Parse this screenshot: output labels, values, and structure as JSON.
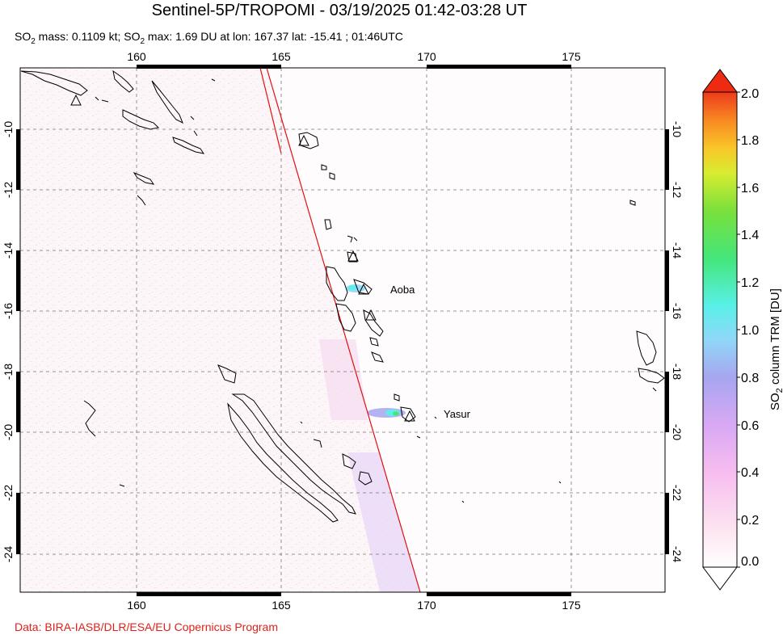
{
  "title": "Sentinel-5P/TROPOMI - 03/19/2025 01:42-03:28 UT",
  "subtitle": {
    "p1": "SO",
    "p1_sub": "2",
    "p2": " mass: 0.1109 kt; SO",
    "p2_sub": "2",
    "p3": " max: 1.69 DU at lon: 167.37 lat: -15.41 ; 01:46UTC"
  },
  "map": {
    "lon_range": [
      156,
      178
    ],
    "lat_range": [
      -25,
      -7.9
    ],
    "x_ticks": [
      "160",
      "165",
      "170",
      "175"
    ],
    "y_ticks": [
      "-10",
      "-12",
      "-14",
      "-16",
      "-18",
      "-20",
      "-22",
      "-24"
    ],
    "volcano_labels": [
      "Aoba",
      "Yasur"
    ],
    "grid": "dashed"
  },
  "colorbar": {
    "title_p1": "SO",
    "title_sub": "2",
    "title_p2": " column TRM [DU]",
    "ticks": [
      "0.0",
      "0.2",
      "0.4",
      "0.6",
      "0.8",
      "1.0",
      "1.2",
      "1.4",
      "1.6",
      "1.8",
      "2.0"
    ],
    "colors": [
      "#ffffff",
      "#fce4f0",
      "#f7bdf0",
      "#d8a8f4",
      "#a7a6f0",
      "#8fd8f8",
      "#59f0e8",
      "#44e67a",
      "#7ae03c",
      "#d8ec30",
      "#f8c828",
      "#f88a22",
      "#ee3a1c"
    ]
  },
  "footer": "Data: BIRA-IASB/DLR/ESA/EU Copernicus Program",
  "colors": {
    "footer": "#e0201a",
    "swath_line": "#e01010"
  }
}
